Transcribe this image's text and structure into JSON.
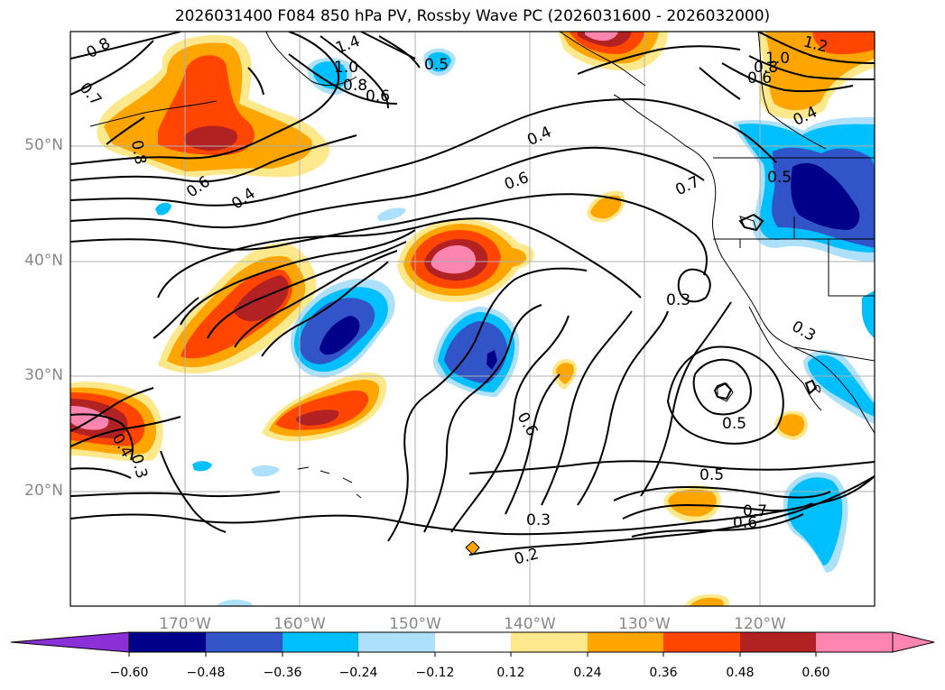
{
  "title": "2026031400 F084 850 hPa PV, Rossby Wave PC (2026031600 - 2026032000)",
  "map": {
    "lon_labels": [
      "170°W",
      "160°W",
      "150°W",
      "140°W",
      "130°W",
      "120°W"
    ],
    "lat_labels": [
      "50°N",
      "40°N",
      "30°N",
      "20°N"
    ],
    "contour_labels": [
      "0.8",
      "0.7",
      "1.4",
      "1.0",
      "0.8",
      "0.6",
      "0.5",
      "0.4",
      "0.6",
      "0.4",
      "0.8",
      "0.6",
      "0.7",
      "0.3",
      "0.5",
      "0.5",
      "0.6",
      "0.3",
      "0.2",
      "0.6",
      "0.7",
      "1.2",
      "1.0",
      "0.8",
      "0.6",
      "0.5",
      "0.4",
      "0.3",
      "0.3",
      "0.4"
    ]
  },
  "colorbar": {
    "ticks": [
      "−0.60",
      "−0.48",
      "−0.36",
      "−0.24",
      "−0.12",
      "0.12",
      "0.24",
      "0.36",
      "0.48",
      "0.60"
    ],
    "colors": [
      "#8b2fd6",
      "#00008b",
      "#3155c8",
      "#00bfff",
      "#ace0fb",
      "#ffffff",
      "#fde98c",
      "#ffa500",
      "#ff4500",
      "#b22222",
      "#ff85b1"
    ]
  },
  "palette": {
    "pos1": "#fde98c",
    "pos2": "#ffa500",
    "pos3": "#ff4500",
    "pos4": "#b22222",
    "pos5": "#ff85b1",
    "neg1": "#ace0fb",
    "neg2": "#00bfff",
    "neg3": "#3155c8",
    "neg4": "#00008b"
  }
}
